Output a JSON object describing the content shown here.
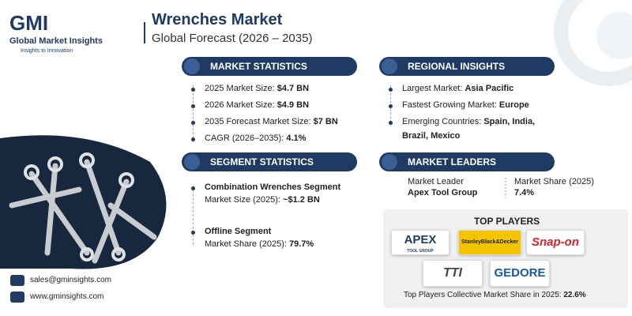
{
  "logo": {
    "mark": "GMI",
    "name": "Global Market Insights",
    "tagline": "Insights to Innovation"
  },
  "header": {
    "title": "Wrenches Market",
    "subtitle": "Global Forecast (2026 – 2035)"
  },
  "market_statistics": {
    "heading": "MARKET STATISTICS",
    "items": [
      {
        "label": "2025 Market Size:",
        "value": "$4.7 BN"
      },
      {
        "label": "2026 Market Size:",
        "value": "$4.9 BN"
      },
      {
        "label": "2035 Forecast Market Size:",
        "value": "$7 BN"
      },
      {
        "label": "CAGR (2026–2035):",
        "value": "4.1%"
      }
    ]
  },
  "regional_insights": {
    "heading": "REGIONAL INSIGHTS",
    "items": [
      {
        "label": "Largest Market:",
        "value": "Asia Pacific"
      },
      {
        "label": "Fastest Growing Market:",
        "value": "Europe"
      },
      {
        "label": "Emerging Countries:",
        "value": "Spain, India,",
        "value_cont": "Brazil, Mexico"
      }
    ]
  },
  "segment_statistics": {
    "heading": "SEGMENT STATISTICS",
    "items": [
      {
        "name": "Combination Wrenches Segment",
        "label": "Market Size (2025):",
        "value": "~$1.2 BN"
      },
      {
        "name": "Offline Segment",
        "label": "Market Share (2025):",
        "value": "79.7%"
      }
    ]
  },
  "market_leaders": {
    "heading": "MARKET LEADERS",
    "leader_label": "Market Leader",
    "leader": "Apex Tool Group",
    "share_label": "Market Share (2025)",
    "share": "7.4%"
  },
  "top_players": {
    "heading": "TOP PLAYERS",
    "logos": [
      {
        "text": "APEX",
        "sub": "TOOL GROUP"
      },
      {
        "text": "StanleyBlack&Decker"
      },
      {
        "text": "Snap-on"
      },
      {
        "text": "TTI"
      },
      {
        "text": "GEDORE"
      }
    ],
    "footer_label": "Top Players Collective Market Share in 2025:",
    "footer_value": "22.6%"
  },
  "contact": {
    "email": "sales@gminsights.com",
    "website": "www.gminsights.com"
  }
}
